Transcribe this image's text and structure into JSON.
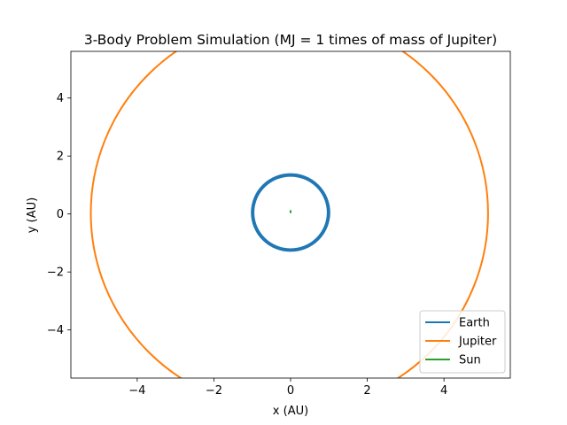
{
  "chart_data": {
    "type": "line",
    "title": "3-Body Problem Simulation (MJ = 1 times of mass of Jupiter)",
    "xlabel": "x (AU)",
    "ylabel": "y (AU)",
    "xlim": [
      -5.73,
      5.73
    ],
    "ylim": [
      -5.66,
      5.61
    ],
    "xticks": [
      -4,
      -2,
      0,
      2,
      4
    ],
    "yticks": [
      -4,
      -2,
      0,
      2,
      4
    ],
    "grid": false,
    "legend": "lower-right",
    "series": [
      {
        "name": "Earth",
        "color": "#1f77b4",
        "shape": "ellipse",
        "cx": 0.0,
        "cy": 0.05,
        "rx": 0.99,
        "ry": 0.98,
        "band": 0.09
      },
      {
        "name": "Jupiter",
        "color": "#ff7f0e",
        "shape": "ellipse",
        "cx": -0.03,
        "cy": 0.03,
        "rx": 5.18,
        "ry": 5.14,
        "band": 0.04
      },
      {
        "name": "Sun",
        "color": "#2ca02c",
        "shape": "segment",
        "x": [
          0.0,
          0.0
        ],
        "y": [
          0.03,
          0.13
        ]
      }
    ]
  }
}
